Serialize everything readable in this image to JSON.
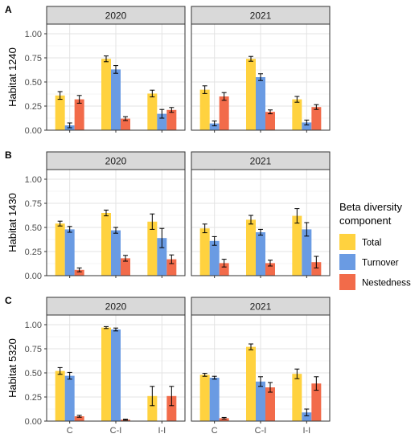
{
  "chart_data": {
    "type": "bar",
    "categories": [
      "C",
      "C-I",
      "I-I"
    ],
    "columns": [
      "2020",
      "2021"
    ],
    "ylim": [
      0,
      1.1
    ],
    "yticks": [
      "0.00",
      "0.25",
      "0.50",
      "0.75",
      "1.00"
    ],
    "ytick_values": [
      0,
      0.25,
      0.5,
      0.75,
      1.0
    ],
    "grid": true,
    "legend": {
      "title_line1": "Beta diversity",
      "title_line2": "component",
      "placement": "right",
      "entries": [
        {
          "name": "Total",
          "color": "#FFD23F"
        },
        {
          "name": "Turnover",
          "color": "#6A9BE3"
        },
        {
          "name": "Nestedness",
          "color": "#F26B4A"
        }
      ]
    },
    "rows": [
      {
        "letter": "A",
        "ylabel": "Habitat 1240",
        "panels": [
          {
            "year": "2020",
            "series": [
              {
                "name": "Total",
                "values": [
                  0.36,
                  0.74,
                  0.38
                ],
                "errors": [
                  0.04,
                  0.03,
                  0.035
                ]
              },
              {
                "name": "Turnover",
                "values": [
                  0.05,
                  0.63,
                  0.17
                ],
                "errors": [
                  0.025,
                  0.04,
                  0.045
                ]
              },
              {
                "name": "Nestedness",
                "values": [
                  0.32,
                  0.12,
                  0.21
                ],
                "errors": [
                  0.04,
                  0.02,
                  0.025
                ]
              }
            ]
          },
          {
            "year": "2021",
            "series": [
              {
                "name": "Total",
                "values": [
                  0.42,
                  0.74,
                  0.32
                ],
                "errors": [
                  0.04,
                  0.025,
                  0.03
                ]
              },
              {
                "name": "Turnover",
                "values": [
                  0.07,
                  0.55,
                  0.08
                ],
                "errors": [
                  0.025,
                  0.035,
                  0.025
                ]
              },
              {
                "name": "Nestedness",
                "values": [
                  0.35,
                  0.19,
                  0.24
                ],
                "errors": [
                  0.04,
                  0.02,
                  0.025
                ]
              }
            ]
          }
        ]
      },
      {
        "letter": "B",
        "ylabel": "Habitat 1430",
        "panels": [
          {
            "year": "2020",
            "series": [
              {
                "name": "Total",
                "values": [
                  0.54,
                  0.65,
                  0.56
                ],
                "errors": [
                  0.025,
                  0.03,
                  0.08
                ]
              },
              {
                "name": "Turnover",
                "values": [
                  0.48,
                  0.47,
                  0.39
                ],
                "errors": [
                  0.03,
                  0.03,
                  0.1
                ]
              },
              {
                "name": "Nestedness",
                "values": [
                  0.06,
                  0.18,
                  0.17
                ],
                "errors": [
                  0.02,
                  0.03,
                  0.045
                ]
              }
            ]
          },
          {
            "year": "2021",
            "series": [
              {
                "name": "Total",
                "values": [
                  0.49,
                  0.58,
                  0.62
                ],
                "errors": [
                  0.045,
                  0.045,
                  0.075
                ]
              },
              {
                "name": "Turnover",
                "values": [
                  0.36,
                  0.45,
                  0.48
                ],
                "errors": [
                  0.045,
                  0.03,
                  0.07
                ]
              },
              {
                "name": "Nestedness",
                "values": [
                  0.13,
                  0.13,
                  0.14
                ],
                "errors": [
                  0.04,
                  0.03,
                  0.06
                ]
              }
            ]
          }
        ]
      },
      {
        "letter": "C",
        "ylabel": "Habitat 5320",
        "panels": [
          {
            "year": "2020",
            "series": [
              {
                "name": "Total",
                "values": [
                  0.52,
                  0.97,
                  0.26
                ],
                "errors": [
                  0.035,
                  0.01,
                  0.1
                ]
              },
              {
                "name": "Turnover",
                "values": [
                  0.47,
                  0.95,
                  0.0
                ],
                "errors": [
                  0.035,
                  0.015,
                  0.0
                ]
              },
              {
                "name": "Nestedness",
                "values": [
                  0.05,
                  0.015,
                  0.26
                ],
                "errors": [
                  0.01,
                  0.005,
                  0.1
                ]
              }
            ]
          },
          {
            "year": "2021",
            "series": [
              {
                "name": "Total",
                "values": [
                  0.48,
                  0.77,
                  0.49
                ],
                "errors": [
                  0.015,
                  0.03,
                  0.05
                ]
              },
              {
                "name": "Turnover",
                "values": [
                  0.45,
                  0.41,
                  0.09
                ],
                "errors": [
                  0.015,
                  0.05,
                  0.035
                ]
              },
              {
                "name": "Nestedness",
                "values": [
                  0.03,
                  0.35,
                  0.39
                ],
                "errors": [
                  0.008,
                  0.05,
                  0.07
                ]
              }
            ]
          }
        ]
      }
    ]
  }
}
